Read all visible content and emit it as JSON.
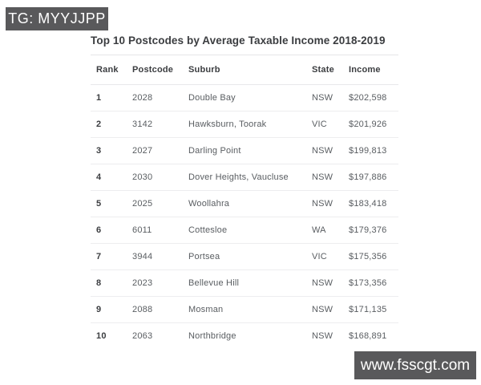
{
  "badge": {
    "label": "TG: MYYJJPP"
  },
  "watermark": {
    "label": "www.fsscgt.com"
  },
  "colors": {
    "badge_background": "#59595b",
    "badge_text": "#ffffff",
    "title_text": "#3b3d40",
    "cell_text": "#595d61",
    "divider": "#ededef",
    "page_background": "#ffffff"
  },
  "chart_data": {
    "type": "table",
    "title": "Top 10 Postcodes by Average Taxable Income 2018-2019",
    "columns": [
      "Rank",
      "Postcode",
      "Suburb",
      "State",
      "Income"
    ],
    "rows": [
      [
        "1",
        "2028",
        "Double Bay",
        "NSW",
        "$202,598"
      ],
      [
        "2",
        "3142",
        "Hawksburn, Toorak",
        "VIC",
        "$201,926"
      ],
      [
        "3",
        "2027",
        "Darling Point",
        "NSW",
        "$199,813"
      ],
      [
        "4",
        "2030",
        "Dover Heights, Vaucluse",
        "NSW",
        "$197,886"
      ],
      [
        "5",
        "2025",
        "Woollahra",
        "NSW",
        "$183,418"
      ],
      [
        "6",
        "6011",
        "Cottesloe",
        "WA",
        "$179,376"
      ],
      [
        "7",
        "3944",
        "Portsea",
        "VIC",
        "$175,356"
      ],
      [
        "8",
        "2023",
        "Bellevue Hill",
        "NSW",
        "$173,356"
      ],
      [
        "9",
        "2088",
        "Mosman",
        "NSW",
        "$171,135"
      ],
      [
        "10",
        "2063",
        "Northbridge",
        "NSW",
        "$168,891"
      ]
    ],
    "income_values": [
      202598,
      201926,
      199813,
      197886,
      183418,
      179376,
      175356,
      173356,
      171135,
      168891
    ]
  }
}
